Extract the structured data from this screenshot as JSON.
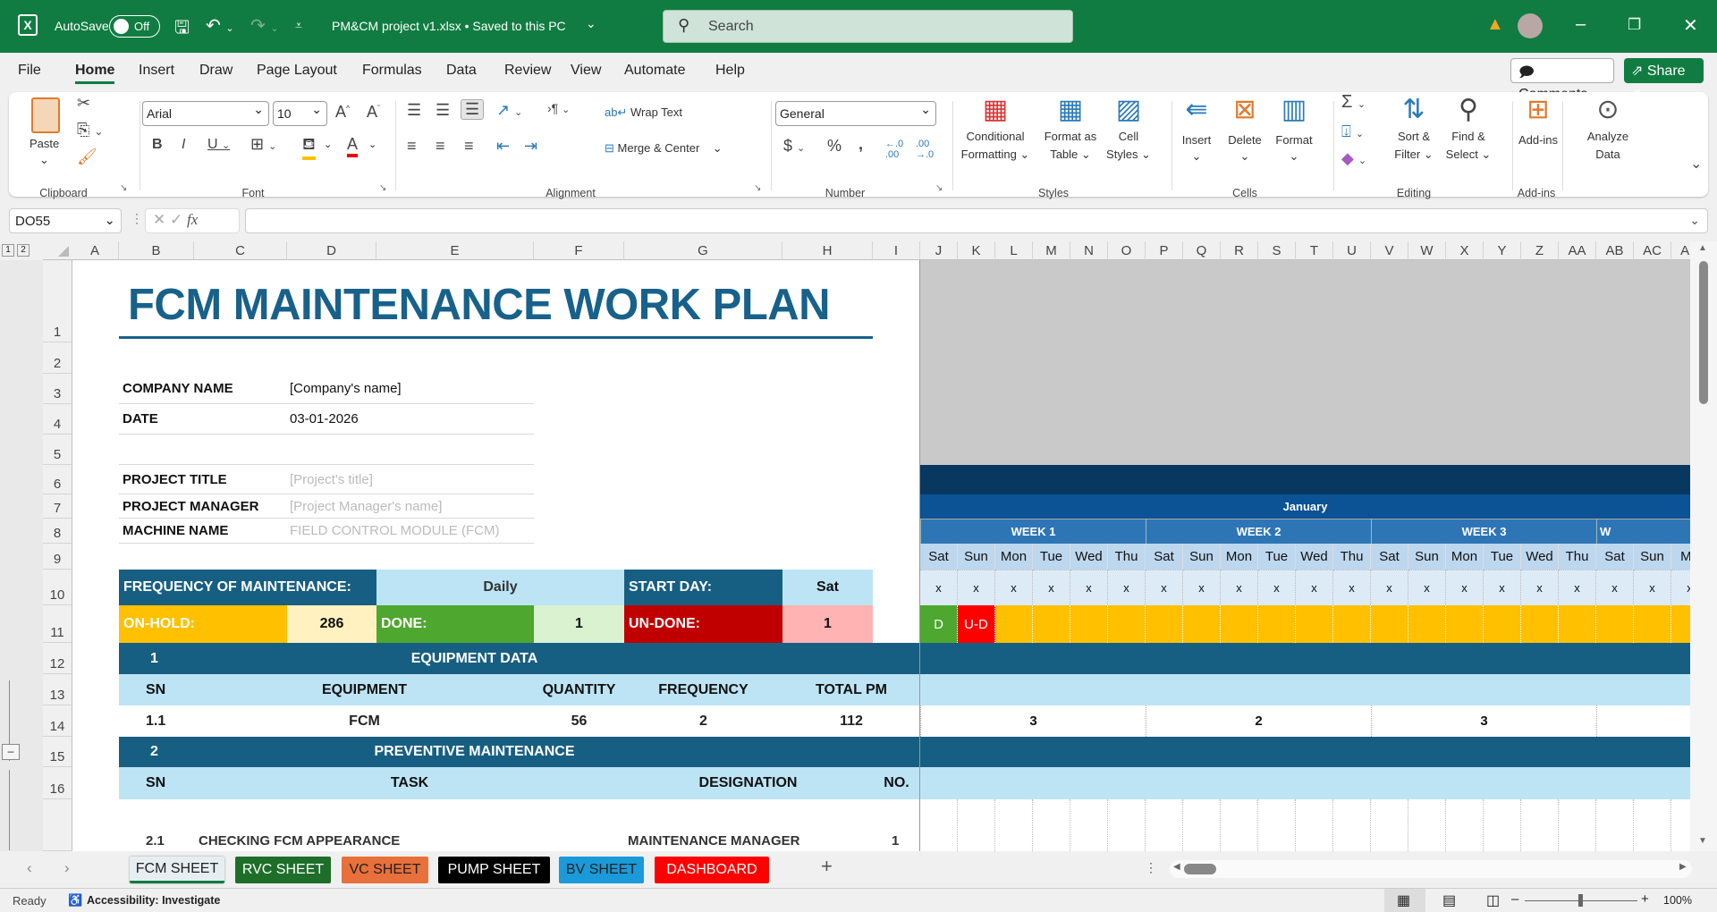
{
  "titlebar": {
    "autosave_label": "AutoSave",
    "autosave_state": "Off",
    "file_title": "PM&CM project v1.xlsx • Saved to this PC",
    "search_placeholder": "Search"
  },
  "menu": [
    "File",
    "Home",
    "Insert",
    "Draw",
    "Page Layout",
    "Formulas",
    "Data",
    "Review",
    "View",
    "Automate",
    "Help"
  ],
  "active_menu": "Home",
  "comments_label": "Comments",
  "share_label": "Share",
  "ribbon": {
    "paste": "Paste",
    "clipboard": "Clipboard",
    "font_name": "Arial",
    "font_size": "10",
    "font": "Font",
    "wrap_text": "Wrap Text",
    "merge_center": "Merge & Center",
    "alignment": "Alignment",
    "number_format": "General",
    "number": "Number",
    "conditional": [
      "Conditional",
      "Formatting ⌄"
    ],
    "format_table": [
      "Format as",
      "Table ⌄"
    ],
    "cell_styles": [
      "Cell",
      "Styles ⌄"
    ],
    "styles": "Styles",
    "insert": "Insert",
    "delete": "Delete",
    "format": "Format",
    "cells": "Cells",
    "sort_filter": [
      "Sort &",
      "Filter ⌄"
    ],
    "find_select": [
      "Find &",
      "Select ⌄"
    ],
    "editing": "Editing",
    "addins": "Add-ins",
    "addins_group": "Add-ins",
    "analyze": [
      "Analyze",
      "Data"
    ]
  },
  "name_box": "DO55",
  "formula_value": "",
  "columns_left": [
    "A",
    "B",
    "C",
    "D",
    "E",
    "F",
    "G",
    "H",
    "I"
  ],
  "columns_right": [
    "J",
    "K",
    "L",
    "M",
    "N",
    "O",
    "P",
    "Q",
    "R",
    "S",
    "T",
    "U",
    "V",
    "W",
    "X",
    "Y",
    "Z",
    "AA",
    "AB",
    "AC",
    "AD"
  ],
  "rows": [
    "1",
    "2",
    "3",
    "4",
    "5",
    "6",
    "7",
    "8",
    "9",
    "10",
    "11",
    "12",
    "13",
    "14",
    "15",
    "16"
  ],
  "sheet": {
    "title": "FCM MAINTENANCE WORK PLAN",
    "info": [
      {
        "label": "COMPANY NAME",
        "value": "[Company's name]",
        "placeholder": false
      },
      {
        "label": "DATE",
        "value": "03-01-2026",
        "placeholder": false
      },
      {
        "label": "PROJECT TITLE",
        "value": "[Project's title]",
        "placeholder": true
      },
      {
        "label": "PROJECT MANAGER",
        "value": "[Project Manager's name]",
        "placeholder": true
      },
      {
        "label": "MACHINE NAME",
        "value": "FIELD CONTROL MODULE (FCM)",
        "placeholder": true
      }
    ],
    "frequency_label": "FREQUENCY OF MAINTENANCE:",
    "frequency_value": "Daily",
    "start_day_label": "START DAY:",
    "start_day_value": "Sat",
    "onhold_label": "ON-HOLD:",
    "onhold_value": "286",
    "done_label": "DONE:",
    "done_value": "1",
    "undone_label": "UN-DONE:",
    "undone_value": "1",
    "sec1_no": "1",
    "sec1_title": "EQUIPMENT DATA",
    "eq_headers": [
      "SN",
      "EQUIPMENT",
      "QUANTITY",
      "FREQUENCY",
      "TOTAL PM"
    ],
    "eq_row": [
      "1.1",
      "FCM",
      "56",
      "2",
      "112"
    ],
    "sec2_no": "2",
    "sec2_title": "PREVENTIVE MAINTENANCE",
    "pm_headers": [
      "SN",
      "TASK",
      "DESIGNATION",
      "NO."
    ],
    "pm_row": [
      "2.1",
      "CHECKING FCM APPEARANCE",
      "MAINTENANCE MANAGER",
      "1"
    ]
  },
  "calendar": {
    "month": "January",
    "weeks": [
      "WEEK 1",
      "WEEK 2",
      "WEEK 3",
      "W"
    ],
    "days": [
      "Sat",
      "Sun",
      "Mon",
      "Tue",
      "Wed",
      "Thu",
      "Sat",
      "Sun",
      "Mon",
      "Tue",
      "Wed",
      "Thu",
      "Sat",
      "Sun",
      "Mon",
      "Tue",
      "Wed",
      "Thu",
      "Sat",
      "Sun",
      "Mo"
    ],
    "mark": "x",
    "status": [
      "D",
      "U-D"
    ],
    "week_counts": [
      "3",
      "2",
      "3",
      ""
    ]
  },
  "tabs": [
    {
      "label": "FCM SHEET",
      "color": "#e6eef2",
      "text": "#222"
    },
    {
      "label": "RVC SHEET",
      "color": "#1e6e2a",
      "text": "#fff"
    },
    {
      "label": "VC SHEET",
      "color": "#e8703a",
      "text": "#222"
    },
    {
      "label": "PUMP SHEET",
      "color": "#000000",
      "text": "#fff"
    },
    {
      "label": "BV SHEET",
      "color": "#1a9ad8",
      "text": "#222"
    },
    {
      "label": "DASHBOARD",
      "color": "#ff0000",
      "text": "#fff"
    }
  ],
  "status": {
    "ready": "Ready",
    "accessibility": "Accessibility: Investigate",
    "zoom": "100%"
  },
  "colors": {
    "excel_green": "#107c41",
    "teal": "#175f82",
    "light_blue": "#bde4f4",
    "on_hold": "#ffc000",
    "done": "#4ea72e",
    "undone": "#c00000",
    "navy": "#08375f",
    "month": "#0b5394",
    "week": "#2e75b6"
  }
}
